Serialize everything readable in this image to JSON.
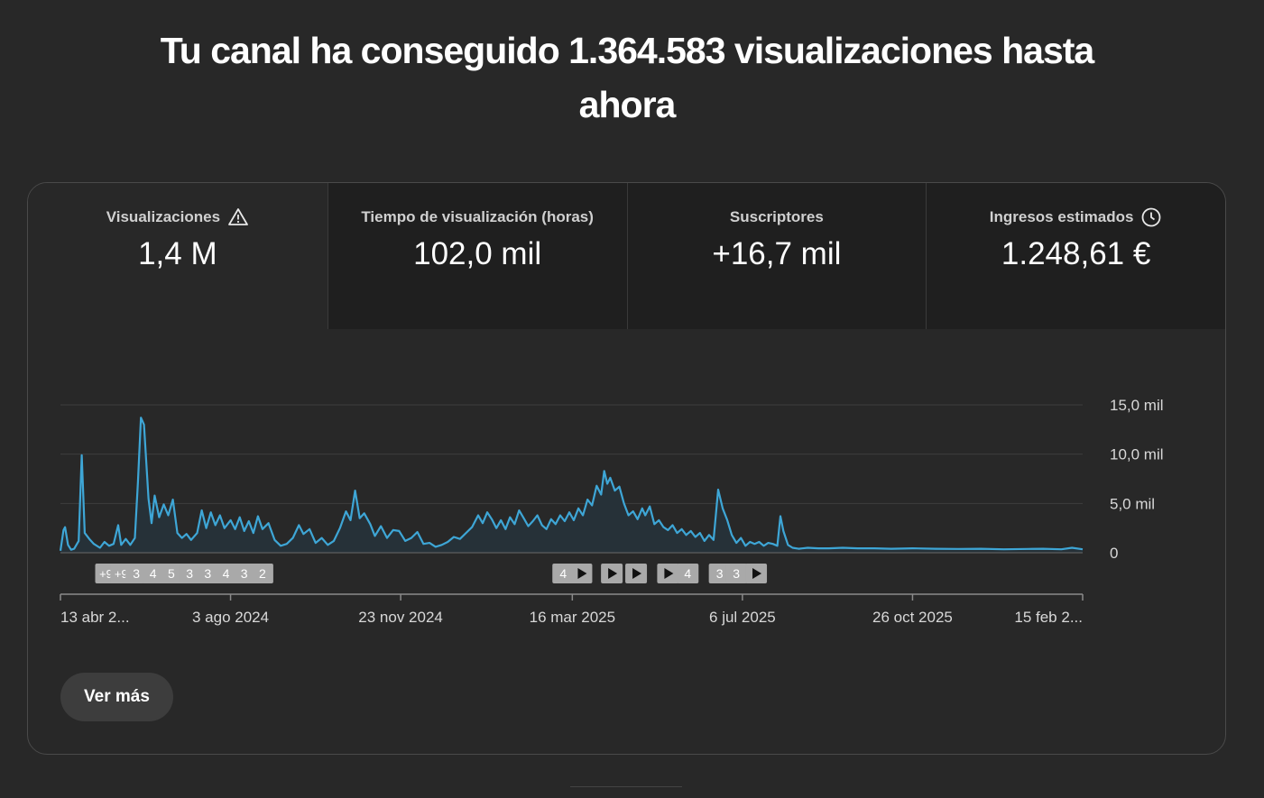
{
  "headline": "Tu canal ha conseguido 1.364.583 visualizaciones hasta ahora",
  "tabs": [
    {
      "label": "Visualizaciones",
      "value": "1,4 M",
      "icon": "warning-icon",
      "active": true
    },
    {
      "label": "Tiempo de visualización (horas)",
      "value": "102,0 mil",
      "icon": null,
      "active": false
    },
    {
      "label": "Suscriptores",
      "value": "+16,7 mil",
      "icon": null,
      "active": false
    },
    {
      "label": "Ingresos estimados",
      "value": "1.248,61 €",
      "icon": "clock-icon",
      "active": false
    }
  ],
  "more_button": "Ver más",
  "chart_data": {
    "type": "area",
    "line_color": "#3ea6d6",
    "fill_color": "#263138",
    "grid": true,
    "ylim": [
      0,
      15000
    ],
    "y_ticks": [
      {
        "value": 15000,
        "label": "15,0 mil"
      },
      {
        "value": 10000,
        "label": "10,0 mil"
      },
      {
        "value": 5000,
        "label": "5,0 mil"
      },
      {
        "value": 0,
        "label": "0"
      }
    ],
    "x_ticks": [
      {
        "date": "2024-04-13",
        "label": "13 abr 2..."
      },
      {
        "date": "2024-08-03",
        "label": "3 ago 2024"
      },
      {
        "date": "2024-11-23",
        "label": "23 nov 2024"
      },
      {
        "date": "2025-03-16",
        "label": "16 mar 2025"
      },
      {
        "date": "2025-07-06",
        "label": "6 jul 2025"
      },
      {
        "date": "2025-10-26",
        "label": "26 oct 2025"
      },
      {
        "date": "2026-02-15",
        "label": "15 feb 2..."
      }
    ],
    "xlim": [
      "2024-04-13",
      "2026-02-15"
    ],
    "markers": [
      {
        "date": "2024-05-13",
        "text": "+9"
      },
      {
        "date": "2024-05-23",
        "text": "+9"
      },
      {
        "date": "2024-06-02",
        "text": "3"
      },
      {
        "date": "2024-06-13",
        "text": "4"
      },
      {
        "date": "2024-06-25",
        "text": "5"
      },
      {
        "date": "2024-07-07",
        "text": "3"
      },
      {
        "date": "2024-07-19",
        "text": "3"
      },
      {
        "date": "2024-07-31",
        "text": "4"
      },
      {
        "date": "2024-08-12",
        "text": "3"
      },
      {
        "date": "2024-08-24",
        "text": "2"
      },
      {
        "date": "2025-03-10",
        "text": "4"
      },
      {
        "date": "2025-03-22",
        "text": "play"
      },
      {
        "date": "2025-04-11",
        "text": "play"
      },
      {
        "date": "2025-04-27",
        "text": "play"
      },
      {
        "date": "2025-05-18",
        "text": "play"
      },
      {
        "date": "2025-05-31",
        "text": "4"
      },
      {
        "date": "2025-06-21",
        "text": "3"
      },
      {
        "date": "2025-07-02",
        "text": "3"
      },
      {
        "date": "2025-07-15",
        "text": "play"
      }
    ],
    "points": [
      [
        "2024-04-13",
        200
      ],
      [
        "2024-04-15",
        2300
      ],
      [
        "2024-04-16",
        2600
      ],
      [
        "2024-04-18",
        800
      ],
      [
        "2024-04-20",
        300
      ],
      [
        "2024-04-22",
        400
      ],
      [
        "2024-04-25",
        1200
      ],
      [
        "2024-04-27",
        9900
      ],
      [
        "2024-04-29",
        2000
      ],
      [
        "2024-05-02",
        1400
      ],
      [
        "2024-05-05",
        900
      ],
      [
        "2024-05-09",
        500
      ],
      [
        "2024-05-12",
        1100
      ],
      [
        "2024-05-15",
        700
      ],
      [
        "2024-05-18",
        900
      ],
      [
        "2024-05-21",
        2800
      ],
      [
        "2024-05-23",
        800
      ],
      [
        "2024-05-26",
        1400
      ],
      [
        "2024-05-29",
        800
      ],
      [
        "2024-06-01",
        1500
      ],
      [
        "2024-06-03",
        7200
      ],
      [
        "2024-06-05",
        13700
      ],
      [
        "2024-06-07",
        13000
      ],
      [
        "2024-06-10",
        5500
      ],
      [
        "2024-06-12",
        3000
      ],
      [
        "2024-06-14",
        5800
      ],
      [
        "2024-06-17",
        3600
      ],
      [
        "2024-06-20",
        4900
      ],
      [
        "2024-06-23",
        3800
      ],
      [
        "2024-06-26",
        5400
      ],
      [
        "2024-06-29",
        2000
      ],
      [
        "2024-07-02",
        1500
      ],
      [
        "2024-07-05",
        1900
      ],
      [
        "2024-07-08",
        1300
      ],
      [
        "2024-07-12",
        2000
      ],
      [
        "2024-07-15",
        4300
      ],
      [
        "2024-07-18",
        2500
      ],
      [
        "2024-07-21",
        4100
      ],
      [
        "2024-07-24",
        2800
      ],
      [
        "2024-07-27",
        3800
      ],
      [
        "2024-07-30",
        2500
      ],
      [
        "2024-08-03",
        3300
      ],
      [
        "2024-08-06",
        2400
      ],
      [
        "2024-08-09",
        3600
      ],
      [
        "2024-08-12",
        2200
      ],
      [
        "2024-08-15",
        3200
      ],
      [
        "2024-08-18",
        2000
      ],
      [
        "2024-08-21",
        3700
      ],
      [
        "2024-08-24",
        2400
      ],
      [
        "2024-08-28",
        3000
      ],
      [
        "2024-09-01",
        1300
      ],
      [
        "2024-09-05",
        700
      ],
      [
        "2024-09-09",
        900
      ],
      [
        "2024-09-13",
        1500
      ],
      [
        "2024-09-17",
        2800
      ],
      [
        "2024-09-20",
        1900
      ],
      [
        "2024-09-24",
        2400
      ],
      [
        "2024-09-28",
        1000
      ],
      [
        "2024-10-02",
        1500
      ],
      [
        "2024-10-06",
        800
      ],
      [
        "2024-10-10",
        1200
      ],
      [
        "2024-10-14",
        2500
      ],
      [
        "2024-10-18",
        4200
      ],
      [
        "2024-10-21",
        3300
      ],
      [
        "2024-10-24",
        6300
      ],
      [
        "2024-10-27",
        3500
      ],
      [
        "2024-10-30",
        4000
      ],
      [
        "2024-11-03",
        2900
      ],
      [
        "2024-11-06",
        1700
      ],
      [
        "2024-11-10",
        2700
      ],
      [
        "2024-11-14",
        1500
      ],
      [
        "2024-11-18",
        2300
      ],
      [
        "2024-11-22",
        2200
      ],
      [
        "2024-11-26",
        1200
      ],
      [
        "2024-11-30",
        1500
      ],
      [
        "2024-12-04",
        2100
      ],
      [
        "2024-12-08",
        900
      ],
      [
        "2024-12-12",
        1000
      ],
      [
        "2024-12-16",
        600
      ],
      [
        "2024-12-20",
        800
      ],
      [
        "2024-12-24",
        1100
      ],
      [
        "2024-12-28",
        1600
      ],
      [
        "2025-01-01",
        1400
      ],
      [
        "2025-01-05",
        2000
      ],
      [
        "2025-01-09",
        2600
      ],
      [
        "2025-01-13",
        3800
      ],
      [
        "2025-01-16",
        3000
      ],
      [
        "2025-01-19",
        4100
      ],
      [
        "2025-01-22",
        3400
      ],
      [
        "2025-01-25",
        2500
      ],
      [
        "2025-01-28",
        3300
      ],
      [
        "2025-01-31",
        2400
      ],
      [
        "2025-02-03",
        3600
      ],
      [
        "2025-02-06",
        2900
      ],
      [
        "2025-02-09",
        4300
      ],
      [
        "2025-02-12",
        3500
      ],
      [
        "2025-02-15",
        2700
      ],
      [
        "2025-02-18",
        3200
      ],
      [
        "2025-02-21",
        3800
      ],
      [
        "2025-02-24",
        2800
      ],
      [
        "2025-02-27",
        2400
      ],
      [
        "2025-03-02",
        3400
      ],
      [
        "2025-03-05",
        2900
      ],
      [
        "2025-03-08",
        3800
      ],
      [
        "2025-03-11",
        3200
      ],
      [
        "2025-03-14",
        4100
      ],
      [
        "2025-03-17",
        3300
      ],
      [
        "2025-03-20",
        4500
      ],
      [
        "2025-03-23",
        3800
      ],
      [
        "2025-03-26",
        5400
      ],
      [
        "2025-03-29",
        4800
      ],
      [
        "2025-04-01",
        6800
      ],
      [
        "2025-04-04",
        5900
      ],
      [
        "2025-04-06",
        8300
      ],
      [
        "2025-04-08",
        7000
      ],
      [
        "2025-04-10",
        7600
      ],
      [
        "2025-04-13",
        6300
      ],
      [
        "2025-04-16",
        6700
      ],
      [
        "2025-04-19",
        5000
      ],
      [
        "2025-04-22",
        3800
      ],
      [
        "2025-04-25",
        4200
      ],
      [
        "2025-04-28",
        3400
      ],
      [
        "2025-05-01",
        4500
      ],
      [
        "2025-05-03",
        3800
      ],
      [
        "2025-05-06",
        4700
      ],
      [
        "2025-05-09",
        2900
      ],
      [
        "2025-05-12",
        3300
      ],
      [
        "2025-05-15",
        2600
      ],
      [
        "2025-05-18",
        2300
      ],
      [
        "2025-05-21",
        2800
      ],
      [
        "2025-05-24",
        2000
      ],
      [
        "2025-05-27",
        2400
      ],
      [
        "2025-05-30",
        1800
      ],
      [
        "2025-06-02",
        2200
      ],
      [
        "2025-06-05",
        1600
      ],
      [
        "2025-06-08",
        2000
      ],
      [
        "2025-06-11",
        1200
      ],
      [
        "2025-06-14",
        1800
      ],
      [
        "2025-06-17",
        1300
      ],
      [
        "2025-06-20",
        6400
      ],
      [
        "2025-06-23",
        4500
      ],
      [
        "2025-06-26",
        3300
      ],
      [
        "2025-06-29",
        1800
      ],
      [
        "2025-07-02",
        1000
      ],
      [
        "2025-07-05",
        1500
      ],
      [
        "2025-07-08",
        700
      ],
      [
        "2025-07-11",
        1100
      ],
      [
        "2025-07-14",
        900
      ],
      [
        "2025-07-17",
        1100
      ],
      [
        "2025-07-20",
        700
      ],
      [
        "2025-07-23",
        1000
      ],
      [
        "2025-07-26",
        900
      ],
      [
        "2025-07-29",
        700
      ],
      [
        "2025-07-31",
        3700
      ],
      [
        "2025-08-02",
        2200
      ],
      [
        "2025-08-05",
        800
      ],
      [
        "2025-08-08",
        500
      ],
      [
        "2025-08-12",
        400
      ],
      [
        "2025-08-18",
        500
      ],
      [
        "2025-08-25",
        450
      ],
      [
        "2025-09-01",
        450
      ],
      [
        "2025-09-10",
        500
      ],
      [
        "2025-09-20",
        450
      ],
      [
        "2025-10-01",
        450
      ],
      [
        "2025-10-12",
        400
      ],
      [
        "2025-10-26",
        450
      ],
      [
        "2025-11-10",
        400
      ],
      [
        "2025-11-25",
        380
      ],
      [
        "2025-12-10",
        400
      ],
      [
        "2025-12-25",
        350
      ],
      [
        "2026-01-10",
        380
      ],
      [
        "2026-01-20",
        400
      ],
      [
        "2026-02-01",
        350
      ],
      [
        "2026-02-08",
        500
      ],
      [
        "2026-02-15",
        350
      ]
    ]
  }
}
